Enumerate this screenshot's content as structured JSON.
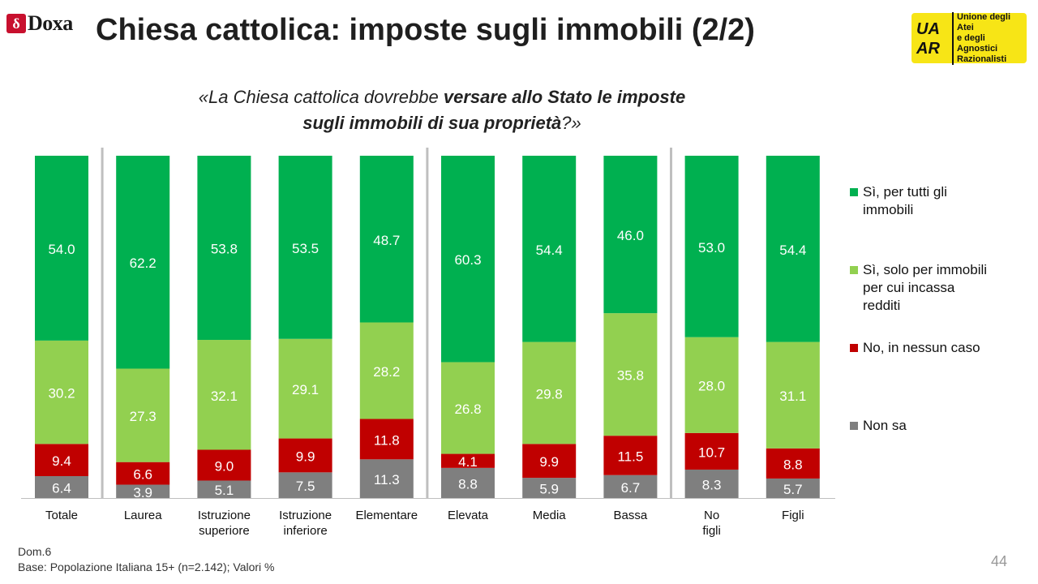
{
  "brand": {
    "doxa_logo": "Doxa",
    "doxa_mark": "δ",
    "uaar_mark": "UA AR",
    "uaar_lines": [
      "Unione degli Atei",
      "e degli Agnostici",
      "Razionalisti"
    ]
  },
  "title": "Chiesa cattolica: imposte sugli immobili (2/2)",
  "question": {
    "open": "«La Chiesa cattolica dovrebbe ",
    "bold1": "versare allo Stato le imposte",
    "bold2": "sugli immobili di sua proprietà",
    "close": "?»"
  },
  "chart_data": {
    "type": "bar",
    "stacked": true,
    "orientation": "vertical",
    "normalized_percent": true,
    "categories": [
      "Totale",
      "Laurea",
      "Istruzione superiore",
      "Istruzione inferiore",
      "Elementare",
      "Elevata",
      "Media",
      "Bassa",
      "No figli",
      "Figli"
    ],
    "series": [
      {
        "name": "Non sa",
        "color": "#7f7f7f",
        "values": [
          6.4,
          3.9,
          5.1,
          7.5,
          11.3,
          8.8,
          5.9,
          6.7,
          8.3,
          5.7
        ]
      },
      {
        "name": "No, in nessun caso",
        "color": "#c00000",
        "values": [
          9.4,
          6.6,
          9.0,
          9.9,
          11.8,
          4.1,
          9.9,
          11.5,
          10.7,
          8.8
        ]
      },
      {
        "name": "Sì, solo per immobili per cui incassa redditi",
        "color": "#92d050",
        "values": [
          30.2,
          27.3,
          32.1,
          29.1,
          28.2,
          26.8,
          29.8,
          35.8,
          28.0,
          31.1
        ]
      },
      {
        "name": "Sì, per tutti gli immobili",
        "color": "#00b050",
        "values": [
          54.0,
          62.2,
          53.8,
          53.5,
          48.7,
          60.3,
          54.4,
          46.0,
          53.0,
          54.4
        ]
      }
    ],
    "legend_position": "right",
    "group_separators_after": [
      "Totale",
      "Elementare",
      "Bassa"
    ],
    "grid": false
  },
  "legend_lines": [
    [
      "Sì, per tutti gli",
      "immobili"
    ],
    [
      "Sì, solo per immobili",
      "per cui incassa",
      "redditi"
    ],
    [
      "No, in nessun caso"
    ],
    [
      "Non sa"
    ]
  ],
  "footnote": {
    "line1": "Dom.6",
    "line2": "Base: Popolazione Italiana 15+ (n=2.142); Valori %"
  },
  "page_number": "44"
}
